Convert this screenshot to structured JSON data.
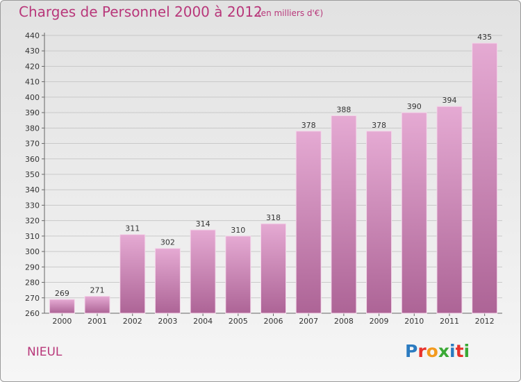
{
  "header": {
    "title": "Charges de Personnel 2000 à 2012",
    "unit": "(en milliers d'€)"
  },
  "footer": {
    "place": "NIEUL",
    "logo_letters": [
      "P",
      "r",
      "o",
      "x",
      "i",
      "t",
      "i"
    ],
    "logo_colors": [
      "#2b7bc0",
      "#e8322b",
      "#f39a1d",
      "#3aa935",
      "#2b7bc0",
      "#e8322b",
      "#3aa935"
    ]
  },
  "colors": {
    "title": "#b8377a",
    "bar_top": "#e5aad3",
    "bar_bottom": "#ad6496",
    "gridline": "#c9c9c9"
  },
  "chart_data": {
    "type": "bar",
    "title": "Charges de Personnel 2000 à 2012",
    "categories": [
      "2000",
      "2001",
      "2002",
      "2003",
      "2004",
      "2005",
      "2006",
      "2007",
      "2008",
      "2009",
      "2010",
      "2011",
      "2012"
    ],
    "values": [
      269,
      271,
      311,
      302,
      314,
      310,
      318,
      378,
      388,
      378,
      390,
      394,
      435
    ],
    "ylim": [
      260,
      440
    ],
    "ytick_step": 10,
    "grid": true
  }
}
